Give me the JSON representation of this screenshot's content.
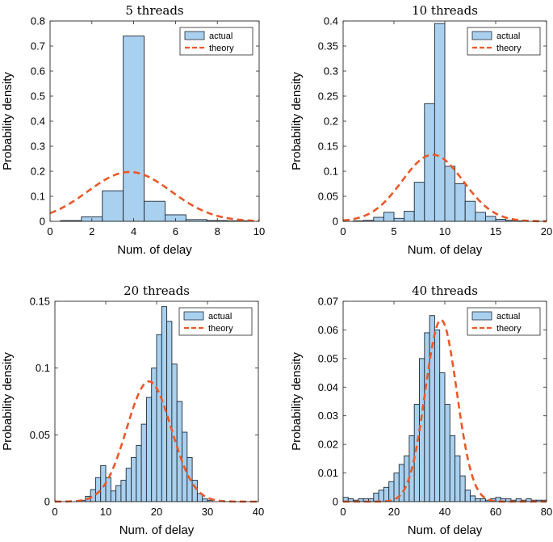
{
  "colors": {
    "bar_fill": "#a9d0ee",
    "bar_edge": "#1f2a36",
    "theory": "#e8592a",
    "axis": "#262626"
  },
  "chart_data": [
    {
      "type": "bar",
      "title": "5 threads",
      "xlabel": "Num. of delay",
      "ylabel": "Probability density",
      "xlim": [
        0,
        10
      ],
      "ylim": [
        0,
        0.8
      ],
      "xticks": [
        "0",
        "2",
        "4",
        "6",
        "8",
        "10"
      ],
      "yticks": [
        "0",
        "0.1",
        "0.2",
        "0.3",
        "0.4",
        "0.5",
        "0.6",
        "0.7",
        "0.8"
      ],
      "xtick_values": [
        0,
        2,
        4,
        6,
        8,
        10
      ],
      "ytick_values": [
        0,
        0.1,
        0.2,
        0.3,
        0.4,
        0.5,
        0.6,
        0.7,
        0.8
      ],
      "bin_start": 0.5,
      "bin_width": 1.0,
      "values": [
        0.003,
        0.018,
        0.122,
        0.74,
        0.08,
        0.026,
        0.007,
        0.003,
        0.002
      ],
      "theory": {
        "mean": 3.8,
        "sd": 2.0,
        "scale": 0.197,
        "xmin": 0,
        "xmax": 10
      },
      "legend": [
        "actual",
        "theory"
      ],
      "legend_position": "top-right"
    },
    {
      "type": "bar",
      "title": "10 threads",
      "xlabel": "Num. of delay",
      "ylabel": "Probability density",
      "xlim": [
        0,
        20
      ],
      "ylim": [
        0,
        0.4
      ],
      "xticks": [
        "0",
        "5",
        "10",
        "15",
        "20"
      ],
      "yticks": [
        "0",
        "0.05",
        "0.1",
        "0.15",
        "0.2",
        "0.25",
        "0.3",
        "0.35",
        "0.4"
      ],
      "xtick_values": [
        0,
        5,
        10,
        15,
        20
      ],
      "ytick_values": [
        0,
        0.05,
        0.1,
        0.15,
        0.2,
        0.25,
        0.3,
        0.35,
        0.4
      ],
      "bin_start": 1.0,
      "bin_width": 1.0,
      "values": [
        0.001,
        0.002,
        0.008,
        0.018,
        0.006,
        0.02,
        0.078,
        0.235,
        0.395,
        0.11,
        0.075,
        0.04,
        0.018,
        0.01,
        0.004,
        0.002,
        0.001
      ],
      "theory": {
        "mean": 8.8,
        "sd": 3.0,
        "scale": 0.133,
        "xmin": 0,
        "xmax": 20
      },
      "legend": [
        "actual",
        "theory"
      ],
      "legend_position": "top-right"
    },
    {
      "type": "bar",
      "title": "20 threads",
      "xlabel": "Num. of delay",
      "ylabel": "Probability density",
      "xlim": [
        0,
        40
      ],
      "ylim": [
        0,
        0.15
      ],
      "xticks": [
        "0",
        "10",
        "20",
        "30",
        "40"
      ],
      "yticks": [
        "0",
        "0.05",
        "0.1",
        "0.15"
      ],
      "xtick_values": [
        0,
        10,
        20,
        30,
        40
      ],
      "ytick_values": [
        0,
        0.05,
        0.1,
        0.15
      ],
      "bin_start": 5.0,
      "bin_width": 1.0,
      "values": [
        0.001,
        0.004,
        0.009,
        0.018,
        0.027,
        0.018,
        0.008,
        0.012,
        0.016,
        0.025,
        0.033,
        0.042,
        0.058,
        0.078,
        0.1,
        0.125,
        0.146,
        0.135,
        0.103,
        0.075,
        0.052,
        0.033,
        0.016,
        0.006,
        0.002,
        0.001
      ],
      "theory": {
        "mean": 18.5,
        "sd": 4.4,
        "scale": 0.09,
        "xmin": 0,
        "xmax": 40
      },
      "legend": [
        "actual",
        "theory"
      ],
      "legend_position": "top-right"
    },
    {
      "type": "bar",
      "title": "40 threads",
      "xlabel": "Num. of delay",
      "ylabel": "Probability density",
      "xlim": [
        0,
        80
      ],
      "ylim": [
        0,
        0.07
      ],
      "xticks": [
        "0",
        "20",
        "40",
        "60",
        "80"
      ],
      "yticks": [
        "0",
        "0.01",
        "0.02",
        "0.03",
        "0.04",
        "0.05",
        "0.06",
        "0.07"
      ],
      "xtick_values": [
        0,
        20,
        40,
        60,
        80
      ],
      "ytick_values": [
        0,
        0.01,
        0.02,
        0.03,
        0.04,
        0.05,
        0.06,
        0.07
      ],
      "bin_start": 0.0,
      "bin_width": 2.0,
      "values": [
        0.0015,
        0.001,
        0.0005,
        0.001,
        0.001,
        0.001,
        0.003,
        0.004,
        0.005,
        0.007,
        0.01,
        0.013,
        0.016,
        0.023,
        0.034,
        0.05,
        0.059,
        0.065,
        0.06,
        0.045,
        0.034,
        0.023,
        0.016,
        0.009,
        0.004,
        0.002,
        0.001,
        0.001,
        0.0005,
        0.001,
        0.0015,
        0.001,
        0.001,
        0.0005,
        0.001,
        0.0005,
        0.001,
        0.0005,
        0.0005,
        0.0005
      ],
      "theory": {
        "mean": 38.5,
        "sd": 6.2,
        "scale": 0.0635,
        "xmin": 0,
        "xmax": 80
      },
      "legend": [
        "actual",
        "theory"
      ],
      "legend_position": "top-right"
    }
  ]
}
